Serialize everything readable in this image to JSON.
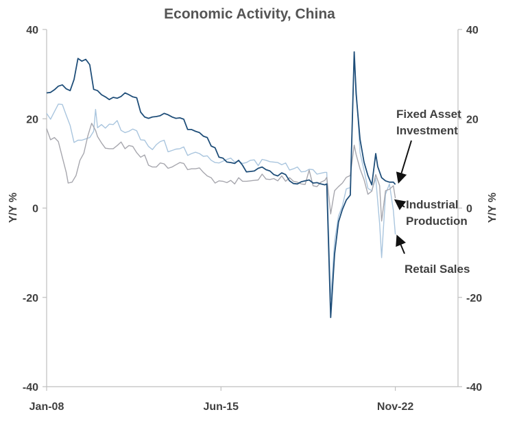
{
  "chart_data": {
    "type": "line",
    "title": "Economic Activity, China",
    "ylabel_left": "Y/Y %",
    "ylabel_right": "Y/Y %",
    "ylim": [
      -40,
      40
    ],
    "yticks": [
      40,
      20,
      0,
      -20,
      -40
    ],
    "xlim": [
      "2008-01",
      "2025-07"
    ],
    "xticks": [
      {
        "label": "Jan-08",
        "x": "2008-01"
      },
      {
        "label": "Jun-15",
        "x": "2015-06"
      },
      {
        "label": "Nov-22",
        "x": "2022-11"
      }
    ],
    "grid": false,
    "series": [
      {
        "name": "Fixed Asset Investment",
        "color": "#1f4e79",
        "label_lines": [
          "Fixed Asset",
          "Investment"
        ],
        "points": [
          [
            "2008-01",
            25.8
          ],
          [
            "2008-03",
            25.9
          ],
          [
            "2008-05",
            26.5
          ],
          [
            "2008-07",
            27.3
          ],
          [
            "2008-09",
            27.6
          ],
          [
            "2008-11",
            26.7
          ],
          [
            "2009-01",
            26.3
          ],
          [
            "2009-03",
            28.8
          ],
          [
            "2009-05",
            33.5
          ],
          [
            "2009-07",
            32.9
          ],
          [
            "2009-09",
            33.3
          ],
          [
            "2009-11",
            32.1
          ],
          [
            "2010-01",
            26.6
          ],
          [
            "2010-03",
            26.3
          ],
          [
            "2010-05",
            25.4
          ],
          [
            "2010-07",
            24.9
          ],
          [
            "2010-09",
            24.3
          ],
          [
            "2010-11",
            24.8
          ],
          [
            "2011-01",
            24.6
          ],
          [
            "2011-03",
            25.0
          ],
          [
            "2011-05",
            25.8
          ],
          [
            "2011-07",
            25.4
          ],
          [
            "2011-09",
            24.9
          ],
          [
            "2011-11",
            24.7
          ],
          [
            "2012-01",
            21.5
          ],
          [
            "2012-03",
            20.4
          ],
          [
            "2012-05",
            20.1
          ],
          [
            "2012-07",
            20.4
          ],
          [
            "2012-09",
            20.5
          ],
          [
            "2012-11",
            20.7
          ],
          [
            "2013-01",
            21.2
          ],
          [
            "2013-03",
            20.9
          ],
          [
            "2013-05",
            20.4
          ],
          [
            "2013-07",
            20.1
          ],
          [
            "2013-09",
            20.2
          ],
          [
            "2013-11",
            19.9
          ],
          [
            "2014-01",
            17.6
          ],
          [
            "2014-03",
            17.6
          ],
          [
            "2014-05",
            17.2
          ],
          [
            "2014-07",
            16.9
          ],
          [
            "2014-09",
            16.1
          ],
          [
            "2014-11",
            15.8
          ],
          [
            "2015-01",
            13.9
          ],
          [
            "2015-03",
            13.5
          ],
          [
            "2015-05",
            11.4
          ],
          [
            "2015-07",
            11.2
          ],
          [
            "2015-09",
            10.3
          ],
          [
            "2015-11",
            10.2
          ],
          [
            "2016-01",
            10.0
          ],
          [
            "2016-03",
            10.7
          ],
          [
            "2016-05",
            9.6
          ],
          [
            "2016-07",
            8.1
          ],
          [
            "2016-09",
            8.2
          ],
          [
            "2016-11",
            8.3
          ],
          [
            "2017-01",
            8.9
          ],
          [
            "2017-03",
            9.2
          ],
          [
            "2017-05",
            8.6
          ],
          [
            "2017-07",
            8.3
          ],
          [
            "2017-09",
            7.5
          ],
          [
            "2017-11",
            7.2
          ],
          [
            "2018-01",
            7.9
          ],
          [
            "2018-03",
            7.5
          ],
          [
            "2018-05",
            6.1
          ],
          [
            "2018-07",
            5.5
          ],
          [
            "2018-09",
            5.4
          ],
          [
            "2018-11",
            5.9
          ],
          [
            "2019-01",
            6.1
          ],
          [
            "2019-03",
            6.3
          ],
          [
            "2019-05",
            5.6
          ],
          [
            "2019-07",
            5.7
          ],
          [
            "2019-09",
            5.4
          ],
          [
            "2019-11",
            5.2
          ],
          [
            "2019-12",
            5.4
          ],
          [
            "2020-02",
            -24.5
          ],
          [
            "2020-04",
            -10.3
          ],
          [
            "2020-06",
            -3.1
          ],
          [
            "2020-08",
            -0.3
          ],
          [
            "2020-10",
            1.8
          ],
          [
            "2020-12",
            2.9
          ],
          [
            "2021-02",
            35.0
          ],
          [
            "2021-03",
            25.6
          ],
          [
            "2021-05",
            15.4
          ],
          [
            "2021-07",
            10.3
          ],
          [
            "2021-09",
            7.3
          ],
          [
            "2021-11",
            5.2
          ],
          [
            "2022-01",
            12.2
          ],
          [
            "2022-02",
            9.3
          ],
          [
            "2022-04",
            6.8
          ],
          [
            "2022-06",
            6.1
          ],
          [
            "2022-08",
            5.8
          ],
          [
            "2022-10",
            5.8
          ],
          [
            "2022-11",
            5.3
          ]
        ]
      },
      {
        "name": "Industrial Production",
        "color": "#a6a6ad",
        "label_lines": [
          "Industrial",
          "Production"
        ],
        "points": [
          [
            "2008-01",
            17.8
          ],
          [
            "2008-03",
            15.3
          ],
          [
            "2008-05",
            15.8
          ],
          [
            "2008-07",
            14.9
          ],
          [
            "2008-09",
            11.4
          ],
          [
            "2008-11",
            8.0
          ],
          [
            "2008-12",
            5.6
          ],
          [
            "2009-02",
            5.8
          ],
          [
            "2009-04",
            7.3
          ],
          [
            "2009-06",
            10.7
          ],
          [
            "2009-08",
            12.3
          ],
          [
            "2009-10",
            16.1
          ],
          [
            "2009-12",
            19.0
          ],
          [
            "2010-02",
            17.4
          ],
          [
            "2010-03",
            16.0
          ],
          [
            "2010-05",
            14.6
          ],
          [
            "2010-07",
            13.4
          ],
          [
            "2010-09",
            13.3
          ],
          [
            "2010-11",
            13.3
          ],
          [
            "2011-01",
            14.0
          ],
          [
            "2011-03",
            14.8
          ],
          [
            "2011-05",
            13.3
          ],
          [
            "2011-07",
            14.0
          ],
          [
            "2011-09",
            13.8
          ],
          [
            "2011-11",
            12.4
          ],
          [
            "2012-01",
            11.4
          ],
          [
            "2012-03",
            11.9
          ],
          [
            "2012-05",
            9.6
          ],
          [
            "2012-07",
            9.2
          ],
          [
            "2012-09",
            9.2
          ],
          [
            "2012-11",
            10.1
          ],
          [
            "2013-01",
            9.9
          ],
          [
            "2013-03",
            8.9
          ],
          [
            "2013-05",
            9.2
          ],
          [
            "2013-07",
            9.7
          ],
          [
            "2013-09",
            10.2
          ],
          [
            "2013-11",
            10.0
          ],
          [
            "2014-01",
            8.6
          ],
          [
            "2014-03",
            8.8
          ],
          [
            "2014-05",
            8.8
          ],
          [
            "2014-07",
            9.0
          ],
          [
            "2014-09",
            8.0
          ],
          [
            "2014-11",
            7.2
          ],
          [
            "2015-01",
            6.8
          ],
          [
            "2015-03",
            5.6
          ],
          [
            "2015-05",
            6.1
          ],
          [
            "2015-07",
            6.0
          ],
          [
            "2015-09",
            5.7
          ],
          [
            "2015-11",
            6.2
          ],
          [
            "2016-01",
            5.4
          ],
          [
            "2016-03",
            6.8
          ],
          [
            "2016-05",
            6.0
          ],
          [
            "2016-07",
            6.0
          ],
          [
            "2016-09",
            6.1
          ],
          [
            "2016-11",
            6.2
          ],
          [
            "2017-01",
            6.3
          ],
          [
            "2017-03",
            7.6
          ],
          [
            "2017-05",
            6.5
          ],
          [
            "2017-07",
            6.4
          ],
          [
            "2017-09",
            6.6
          ],
          [
            "2017-11",
            6.1
          ],
          [
            "2018-01",
            7.2
          ],
          [
            "2018-03",
            6.0
          ],
          [
            "2018-05",
            6.8
          ],
          [
            "2018-07",
            6.0
          ],
          [
            "2018-09",
            5.8
          ],
          [
            "2018-11",
            5.4
          ],
          [
            "2019-01",
            5.3
          ],
          [
            "2019-03",
            8.5
          ],
          [
            "2019-05",
            5.0
          ],
          [
            "2019-07",
            4.8
          ],
          [
            "2019-09",
            5.8
          ],
          [
            "2019-11",
            6.2
          ],
          [
            "2019-12",
            6.9
          ],
          [
            "2020-02",
            -1.3
          ],
          [
            "2020-04",
            3.9
          ],
          [
            "2020-06",
            4.8
          ],
          [
            "2020-08",
            5.6
          ],
          [
            "2020-10",
            6.9
          ],
          [
            "2020-12",
            7.3
          ],
          [
            "2021-02",
            14.1
          ],
          [
            "2021-03",
            12.0
          ],
          [
            "2021-05",
            8.8
          ],
          [
            "2021-07",
            6.4
          ],
          [
            "2021-09",
            3.1
          ],
          [
            "2021-11",
            3.8
          ],
          [
            "2022-01",
            7.5
          ],
          [
            "2022-03",
            5.0
          ],
          [
            "2022-04",
            -2.9
          ],
          [
            "2022-06",
            3.9
          ],
          [
            "2022-08",
            4.2
          ],
          [
            "2022-10",
            5.0
          ],
          [
            "2022-11",
            2.2
          ]
        ]
      },
      {
        "name": "Retail Sales",
        "color": "#a9c5de",
        "label_lines": [
          "Retail Sales"
        ],
        "points": [
          [
            "2008-01",
            21.2
          ],
          [
            "2008-03",
            19.9
          ],
          [
            "2008-05",
            21.6
          ],
          [
            "2008-07",
            23.3
          ],
          [
            "2008-09",
            23.2
          ],
          [
            "2008-11",
            20.8
          ],
          [
            "2009-01",
            18.5
          ],
          [
            "2009-03",
            14.7
          ],
          [
            "2009-05",
            15.2
          ],
          [
            "2009-07",
            15.2
          ],
          [
            "2009-09",
            15.5
          ],
          [
            "2009-11",
            15.8
          ],
          [
            "2010-01",
            17.2
          ],
          [
            "2010-02",
            22.1
          ],
          [
            "2010-03",
            18.0
          ],
          [
            "2010-05",
            18.7
          ],
          [
            "2010-07",
            17.9
          ],
          [
            "2010-09",
            18.8
          ],
          [
            "2010-11",
            18.7
          ],
          [
            "2011-01",
            19.6
          ],
          [
            "2011-03",
            17.4
          ],
          [
            "2011-05",
            16.9
          ],
          [
            "2011-07",
            17.2
          ],
          [
            "2011-09",
            17.7
          ],
          [
            "2011-11",
            17.3
          ],
          [
            "2012-01",
            15.3
          ],
          [
            "2012-03",
            15.2
          ],
          [
            "2012-05",
            13.8
          ],
          [
            "2012-07",
            13.1
          ],
          [
            "2012-09",
            14.2
          ],
          [
            "2012-11",
            14.9
          ],
          [
            "2013-01",
            15.2
          ],
          [
            "2013-03",
            12.6
          ],
          [
            "2013-05",
            12.9
          ],
          [
            "2013-07",
            13.2
          ],
          [
            "2013-09",
            13.3
          ],
          [
            "2013-11",
            13.7
          ],
          [
            "2014-01",
            11.8
          ],
          [
            "2014-03",
            12.2
          ],
          [
            "2014-05",
            12.5
          ],
          [
            "2014-07",
            12.2
          ],
          [
            "2014-09",
            11.6
          ],
          [
            "2014-11",
            11.7
          ],
          [
            "2015-01",
            10.7
          ],
          [
            "2015-03",
            10.2
          ],
          [
            "2015-05",
            10.1
          ],
          [
            "2015-07",
            10.5
          ],
          [
            "2015-09",
            10.9
          ],
          [
            "2015-11",
            11.2
          ],
          [
            "2016-01",
            10.3
          ],
          [
            "2016-03",
            10.5
          ],
          [
            "2016-05",
            10.0
          ],
          [
            "2016-07",
            10.2
          ],
          [
            "2016-09",
            10.7
          ],
          [
            "2016-11",
            10.8
          ],
          [
            "2017-01",
            9.5
          ],
          [
            "2017-03",
            10.9
          ],
          [
            "2017-05",
            10.7
          ],
          [
            "2017-07",
            10.4
          ],
          [
            "2017-09",
            10.3
          ],
          [
            "2017-11",
            10.2
          ],
          [
            "2018-01",
            9.7
          ],
          [
            "2018-03",
            10.1
          ],
          [
            "2018-05",
            8.5
          ],
          [
            "2018-07",
            8.8
          ],
          [
            "2018-09",
            9.2
          ],
          [
            "2018-11",
            8.1
          ],
          [
            "2019-01",
            8.2
          ],
          [
            "2019-03",
            8.7
          ],
          [
            "2019-05",
            8.6
          ],
          [
            "2019-07",
            7.6
          ],
          [
            "2019-09",
            7.8
          ],
          [
            "2019-11",
            8.0
          ],
          [
            "2019-12",
            8.0
          ],
          [
            "2020-02",
            -20.5
          ],
          [
            "2020-04",
            -7.5
          ],
          [
            "2020-06",
            -1.8
          ],
          [
            "2020-08",
            0.5
          ],
          [
            "2020-10",
            4.3
          ],
          [
            "2020-12",
            4.6
          ],
          [
            "2021-02",
            34.0
          ],
          [
            "2021-03",
            27.0
          ],
          [
            "2021-05",
            12.4
          ],
          [
            "2021-07",
            8.5
          ],
          [
            "2021-09",
            4.4
          ],
          [
            "2021-11",
            3.9
          ],
          [
            "2022-01",
            6.7
          ],
          [
            "2022-03",
            -3.5
          ],
          [
            "2022-04",
            -11.1
          ],
          [
            "2022-06",
            3.1
          ],
          [
            "2022-08",
            5.4
          ],
          [
            "2022-10",
            -0.5
          ],
          [
            "2022-11",
            -5.9
          ]
        ]
      }
    ]
  }
}
